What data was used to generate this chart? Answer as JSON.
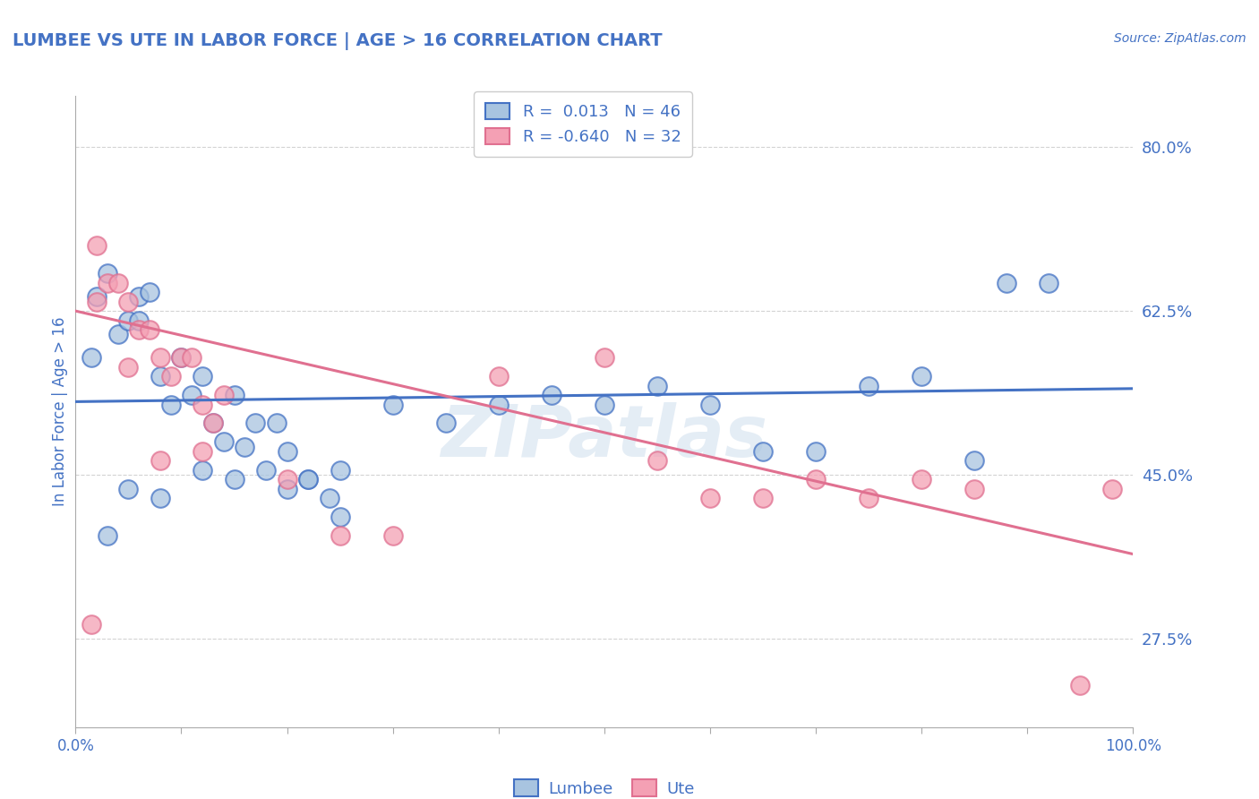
{
  "title": "LUMBEE VS UTE IN LABOR FORCE | AGE > 16 CORRELATION CHART",
  "source_text": "Source: ZipAtlas.com",
  "ylabel": "In Labor Force | Age > 16",
  "xlim": [
    0.0,
    1.0
  ],
  "ylim": [
    0.18,
    0.855
  ],
  "yticks": [
    0.275,
    0.45,
    0.625,
    0.8
  ],
  "ytick_labels": [
    "27.5%",
    "45.0%",
    "62.5%",
    "80.0%"
  ],
  "xticks": [
    0.0,
    0.1,
    0.2,
    0.3,
    0.4,
    0.5,
    0.6,
    0.7,
    0.8,
    0.9,
    1.0
  ],
  "xtick_labels": [
    "0.0%",
    "",
    "",
    "",
    "",
    "",
    "",
    "",
    "",
    "",
    "100.0%"
  ],
  "lumbee_R": 0.013,
  "lumbee_N": 46,
  "ute_R": -0.64,
  "ute_N": 32,
  "lumbee_color": "#a8c4e0",
  "ute_color": "#f4a0b4",
  "lumbee_line_color": "#4472c4",
  "ute_line_color": "#e07090",
  "text_color": "#4472c4",
  "background_color": "#ffffff",
  "grid_color": "#c8c8c8",
  "watermark": "ZIPatlas",
  "lumbee_x": [
    0.015,
    0.02,
    0.03,
    0.04,
    0.05,
    0.06,
    0.06,
    0.07,
    0.08,
    0.09,
    0.1,
    0.11,
    0.12,
    0.13,
    0.14,
    0.15,
    0.16,
    0.17,
    0.18,
    0.19,
    0.2,
    0.22,
    0.24,
    0.25,
    0.3,
    0.35,
    0.4,
    0.45,
    0.5,
    0.55,
    0.6,
    0.65,
    0.7,
    0.75,
    0.8,
    0.85,
    0.88,
    0.92,
    0.03,
    0.05,
    0.08,
    0.12,
    0.15,
    0.2,
    0.22,
    0.25
  ],
  "lumbee_y": [
    0.575,
    0.64,
    0.665,
    0.6,
    0.615,
    0.64,
    0.615,
    0.645,
    0.555,
    0.525,
    0.575,
    0.535,
    0.555,
    0.505,
    0.485,
    0.535,
    0.48,
    0.505,
    0.455,
    0.505,
    0.475,
    0.445,
    0.425,
    0.455,
    0.525,
    0.505,
    0.525,
    0.535,
    0.525,
    0.545,
    0.525,
    0.475,
    0.475,
    0.545,
    0.555,
    0.465,
    0.655,
    0.655,
    0.385,
    0.435,
    0.425,
    0.455,
    0.445,
    0.435,
    0.445,
    0.405
  ],
  "ute_x": [
    0.015,
    0.02,
    0.03,
    0.04,
    0.05,
    0.06,
    0.07,
    0.08,
    0.09,
    0.1,
    0.11,
    0.12,
    0.13,
    0.14,
    0.2,
    0.25,
    0.3,
    0.4,
    0.5,
    0.55,
    0.6,
    0.65,
    0.7,
    0.75,
    0.8,
    0.85,
    0.95,
    0.98,
    0.02,
    0.05,
    0.08,
    0.12
  ],
  "ute_y": [
    0.29,
    0.695,
    0.655,
    0.655,
    0.635,
    0.605,
    0.605,
    0.575,
    0.555,
    0.575,
    0.575,
    0.525,
    0.505,
    0.535,
    0.445,
    0.385,
    0.385,
    0.555,
    0.575,
    0.465,
    0.425,
    0.425,
    0.445,
    0.425,
    0.445,
    0.435,
    0.225,
    0.435,
    0.635,
    0.565,
    0.465,
    0.475
  ],
  "lumbee_trend_x": [
    0.0,
    1.0
  ],
  "lumbee_trend_y": [
    0.528,
    0.542
  ],
  "ute_trend_x": [
    0.0,
    1.0
  ],
  "ute_trend_y": [
    0.625,
    0.365
  ]
}
